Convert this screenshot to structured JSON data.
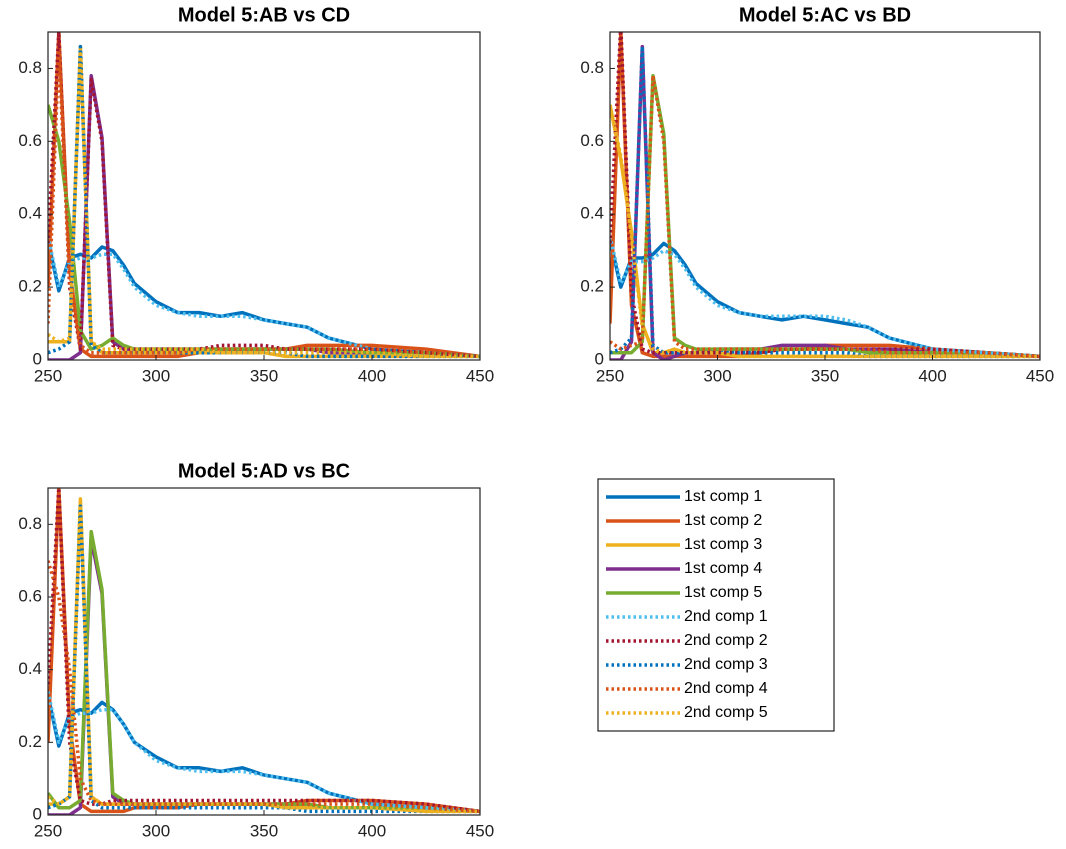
{
  "chart_data": [
    {
      "type": "line",
      "title": "Model 5:AB vs CD",
      "x": [
        250,
        255,
        260,
        265,
        270,
        275,
        280,
        285,
        290,
        300,
        310,
        320,
        330,
        340,
        350,
        360,
        370,
        380,
        400,
        425,
        450
      ],
      "xlim": [
        250,
        450
      ],
      "xticks": [
        250,
        300,
        350,
        400,
        450
      ],
      "ylim": [
        0,
        0.9
      ],
      "yticks": [
        0,
        0.2,
        0.4,
        0.6,
        0.8
      ],
      "series": [
        {
          "name": "1st comp 1",
          "color": "#0072BD",
          "line_style": "solid",
          "values": [
            0.33,
            0.19,
            0.28,
            0.29,
            0.28,
            0.31,
            0.3,
            0.26,
            0.21,
            0.16,
            0.13,
            0.13,
            0.12,
            0.13,
            0.11,
            0.1,
            0.09,
            0.06,
            0.03,
            0.02,
            0.01
          ]
        },
        {
          "name": "1st comp 2",
          "color": "#D95319",
          "line_style": "solid",
          "values": [
            0.2,
            0.9,
            0.25,
            0.03,
            0.01,
            0.01,
            0.01,
            0.01,
            0.01,
            0.01,
            0.01,
            0.02,
            0.03,
            0.03,
            0.03,
            0.03,
            0.04,
            0.04,
            0.04,
            0.03,
            0.01
          ]
        },
        {
          "name": "1st comp 3",
          "color": "#EDB120",
          "line_style": "solid",
          "values": [
            0.05,
            0.05,
            0.05,
            0.86,
            0.05,
            0.02,
            0.02,
            0.02,
            0.02,
            0.02,
            0.02,
            0.02,
            0.02,
            0.02,
            0.02,
            0.01,
            0.01,
            0.01,
            0.01,
            0.01,
            0.01
          ]
        },
        {
          "name": "1st comp 4",
          "color": "#7E2F8E",
          "line_style": "solid",
          "values": [
            0,
            0,
            0,
            0.02,
            0.78,
            0.61,
            0.05,
            0.03,
            0.03,
            0.03,
            0.03,
            0.03,
            0.03,
            0.03,
            0.03,
            0.03,
            0.03,
            0.02,
            0.02,
            0.02,
            0.01
          ]
        },
        {
          "name": "1st comp 5",
          "color": "#77AC30",
          "line_style": "solid",
          "values": [
            0.7,
            0.6,
            0.38,
            0.08,
            0.03,
            0.04,
            0.06,
            0.04,
            0.03,
            0.03,
            0.03,
            0.03,
            0.03,
            0.03,
            0.03,
            0.03,
            0.03,
            0.03,
            0.02,
            0.02,
            0.01
          ]
        },
        {
          "name": "2nd comp 1",
          "color": "#4DBEEE",
          "line_style": "dotted",
          "values": [
            0.34,
            0.2,
            0.27,
            0.28,
            0.28,
            0.29,
            0.29,
            0.25,
            0.2,
            0.15,
            0.13,
            0.12,
            0.12,
            0.12,
            0.11,
            0.1,
            0.09,
            0.06,
            0.03,
            0.02,
            0.01
          ]
        },
        {
          "name": "2nd comp 2",
          "color": "#A2142F",
          "line_style": "dotted",
          "values": [
            0.32,
            0.9,
            0.2,
            0.03,
            0.77,
            0.6,
            0.04,
            0.03,
            0.03,
            0.03,
            0.03,
            0.03,
            0.04,
            0.04,
            0.04,
            0.03,
            0.03,
            0.03,
            0.03,
            0.02,
            0.01
          ]
        },
        {
          "name": "2nd comp 3",
          "color": "#0072BD",
          "line_style": "dotted",
          "values": [
            0.02,
            0.03,
            0.05,
            0.86,
            0.04,
            0.02,
            0.02,
            0.02,
            0.02,
            0.02,
            0.02,
            0.02,
            0.02,
            0.02,
            0.02,
            0.02,
            0.01,
            0.01,
            0.01,
            0.01,
            0.01
          ]
        },
        {
          "name": "2nd comp 4",
          "color": "#D95319",
          "line_style": "dotted",
          "values": [
            0.1,
            0.85,
            0.22,
            0.04,
            0.02,
            0.02,
            0.02,
            0.02,
            0.02,
            0.02,
            0.02,
            0.03,
            0.03,
            0.03,
            0.03,
            0.03,
            0.03,
            0.03,
            0.03,
            0.02,
            0.01
          ]
        },
        {
          "name": "2nd comp 5",
          "color": "#EDB120",
          "line_style": "dotted",
          "values": [
            0.07,
            0.05,
            0.06,
            0.84,
            0.05,
            0.03,
            0.03,
            0.03,
            0.03,
            0.03,
            0.03,
            0.03,
            0.02,
            0.02,
            0.02,
            0.02,
            0.02,
            0.02,
            0.02,
            0.01,
            0.01
          ]
        }
      ]
    },
    {
      "type": "line",
      "title": "Model 5:AC vs BD",
      "x": [
        250,
        255,
        260,
        265,
        270,
        275,
        280,
        285,
        290,
        300,
        310,
        320,
        330,
        340,
        350,
        360,
        370,
        380,
        400,
        425,
        450
      ],
      "xlim": [
        250,
        450
      ],
      "xticks": [
        250,
        300,
        350,
        400,
        450
      ],
      "ylim": [
        0,
        0.9
      ],
      "yticks": [
        0,
        0.2,
        0.4,
        0.6,
        0.8
      ],
      "series": [
        {
          "name": "1st comp 1",
          "color": "#0072BD",
          "line_style": "solid",
          "values": [
            0.33,
            0.2,
            0.28,
            0.28,
            0.29,
            0.32,
            0.3,
            0.26,
            0.21,
            0.16,
            0.13,
            0.12,
            0.11,
            0.12,
            0.11,
            0.1,
            0.09,
            0.06,
            0.03,
            0.02,
            0.01
          ]
        },
        {
          "name": "1st comp 2",
          "color": "#D95319",
          "line_style": "solid",
          "values": [
            0.1,
            0.9,
            0.15,
            0.02,
            0.01,
            0.01,
            0.01,
            0.01,
            0.01,
            0.01,
            0.01,
            0.02,
            0.03,
            0.03,
            0.04,
            0.04,
            0.04,
            0.04,
            0.03,
            0.02,
            0.01
          ]
        },
        {
          "name": "1st comp 3",
          "color": "#EDB120",
          "line_style": "solid",
          "values": [
            0.7,
            0.55,
            0.35,
            0.1,
            0.02,
            0.02,
            0.03,
            0.02,
            0.02,
            0.02,
            0.01,
            0.01,
            0.01,
            0.01,
            0.01,
            0.01,
            0.01,
            0.01,
            0.01,
            0.01,
            0.01
          ]
        },
        {
          "name": "1st comp 4",
          "color": "#7E2F8E",
          "line_style": "solid",
          "values": [
            0,
            0,
            0.05,
            0.86,
            0.02,
            0,
            0.01,
            0.02,
            0.02,
            0.03,
            0.03,
            0.03,
            0.04,
            0.04,
            0.04,
            0.03,
            0.03,
            0.03,
            0.02,
            0.02,
            0.01
          ]
        },
        {
          "name": "1st comp 5",
          "color": "#77AC30",
          "line_style": "solid",
          "values": [
            0.02,
            0.02,
            0.02,
            0.05,
            0.78,
            0.62,
            0.06,
            0.04,
            0.03,
            0.03,
            0.03,
            0.03,
            0.03,
            0.03,
            0.03,
            0.03,
            0.02,
            0.02,
            0.02,
            0.02,
            0.01
          ]
        },
        {
          "name": "2nd comp 1",
          "color": "#4DBEEE",
          "line_style": "dotted",
          "values": [
            0.34,
            0.21,
            0.27,
            0.27,
            0.28,
            0.3,
            0.29,
            0.25,
            0.2,
            0.15,
            0.13,
            0.12,
            0.12,
            0.12,
            0.12,
            0.11,
            0.09,
            0.06,
            0.03,
            0.02,
            0.01
          ]
        },
        {
          "name": "2nd comp 2",
          "color": "#A2142F",
          "line_style": "dotted",
          "values": [
            0.32,
            0.92,
            0.18,
            0.03,
            0.02,
            0.02,
            0.02,
            0.02,
            0.02,
            0.02,
            0.02,
            0.02,
            0.03,
            0.03,
            0.03,
            0.03,
            0.03,
            0.03,
            0.03,
            0.02,
            0.01
          ]
        },
        {
          "name": "2nd comp 3",
          "color": "#0072BD",
          "line_style": "dotted",
          "values": [
            0.02,
            0.03,
            0.06,
            0.86,
            0.04,
            0.02,
            0.02,
            0.02,
            0.02,
            0.02,
            0.02,
            0.02,
            0.02,
            0.02,
            0.02,
            0.02,
            0.01,
            0.01,
            0.01,
            0.01,
            0.01
          ]
        },
        {
          "name": "2nd comp 4",
          "color": "#D95319",
          "line_style": "dotted",
          "values": [
            0.05,
            0.03,
            0.04,
            0.05,
            0.78,
            0.6,
            0.05,
            0.03,
            0.03,
            0.03,
            0.03,
            0.03,
            0.03,
            0.03,
            0.03,
            0.03,
            0.03,
            0.02,
            0.02,
            0.02,
            0.01
          ]
        },
        {
          "name": "2nd comp 5",
          "color": "#EDB120",
          "line_style": "dotted",
          "values": [
            0.7,
            0.56,
            0.34,
            0.09,
            0.03,
            0.02,
            0.03,
            0.02,
            0.02,
            0.02,
            0.01,
            0.01,
            0.01,
            0.01,
            0.01,
            0.01,
            0.01,
            0.01,
            0.01,
            0.01,
            0.01
          ]
        }
      ]
    },
    {
      "type": "line",
      "title": "Model 5:AD vs BC",
      "x": [
        250,
        255,
        260,
        265,
        270,
        275,
        280,
        285,
        290,
        300,
        310,
        320,
        330,
        340,
        350,
        360,
        370,
        380,
        400,
        425,
        450
      ],
      "xlim": [
        250,
        450
      ],
      "xticks": [
        250,
        300,
        350,
        400,
        450
      ],
      "ylim": [
        0,
        0.9
      ],
      "yticks": [
        0,
        0.2,
        0.4,
        0.6,
        0.8
      ],
      "series": [
        {
          "name": "1st comp 1",
          "color": "#0072BD",
          "line_style": "solid",
          "values": [
            0.33,
            0.19,
            0.28,
            0.29,
            0.28,
            0.31,
            0.29,
            0.25,
            0.2,
            0.16,
            0.13,
            0.13,
            0.12,
            0.13,
            0.11,
            0.1,
            0.09,
            0.06,
            0.03,
            0.02,
            0.01
          ]
        },
        {
          "name": "1st comp 2",
          "color": "#D95319",
          "line_style": "solid",
          "values": [
            0.2,
            0.9,
            0.25,
            0.03,
            0.01,
            0.01,
            0.01,
            0.01,
            0.02,
            0.02,
            0.02,
            0.03,
            0.03,
            0.03,
            0.03,
            0.03,
            0.04,
            0.04,
            0.04,
            0.03,
            0.01
          ]
        },
        {
          "name": "1st comp 3",
          "color": "#EDB120",
          "line_style": "solid",
          "values": [
            0.03,
            0.03,
            0.05,
            0.87,
            0.05,
            0.03,
            0.03,
            0.03,
            0.03,
            0.03,
            0.03,
            0.03,
            0.03,
            0.03,
            0.03,
            0.02,
            0.02,
            0.02,
            0.02,
            0.01,
            0.01
          ]
        },
        {
          "name": "1st comp 4",
          "color": "#7E2F8E",
          "line_style": "solid",
          "values": [
            0,
            0,
            0,
            0.02,
            0.76,
            0.61,
            0.05,
            0.03,
            0.03,
            0.03,
            0.03,
            0.03,
            0.03,
            0.03,
            0.03,
            0.03,
            0.03,
            0.02,
            0.02,
            0.02,
            0.01
          ]
        },
        {
          "name": "1st comp 5",
          "color": "#77AC30",
          "line_style": "solid",
          "values": [
            0.06,
            0.02,
            0.02,
            0.04,
            0.78,
            0.62,
            0.06,
            0.04,
            0.03,
            0.03,
            0.03,
            0.03,
            0.03,
            0.03,
            0.03,
            0.03,
            0.03,
            0.02,
            0.02,
            0.02,
            0.01
          ]
        },
        {
          "name": "2nd comp 1",
          "color": "#4DBEEE",
          "line_style": "dotted",
          "values": [
            0.34,
            0.2,
            0.27,
            0.28,
            0.28,
            0.29,
            0.29,
            0.25,
            0.2,
            0.15,
            0.13,
            0.12,
            0.12,
            0.12,
            0.11,
            0.1,
            0.09,
            0.06,
            0.03,
            0.02,
            0.01
          ]
        },
        {
          "name": "2nd comp 2",
          "color": "#A2142F",
          "line_style": "dotted",
          "values": [
            0.36,
            0.9,
            0.2,
            0.04,
            0.03,
            0.03,
            0.04,
            0.04,
            0.04,
            0.04,
            0.04,
            0.04,
            0.04,
            0.04,
            0.04,
            0.04,
            0.04,
            0.04,
            0.04,
            0.03,
            0.01
          ]
        },
        {
          "name": "2nd comp 3",
          "color": "#0072BD",
          "line_style": "dotted",
          "values": [
            0.02,
            0.03,
            0.05,
            0.85,
            0.04,
            0.02,
            0.02,
            0.02,
            0.02,
            0.02,
            0.02,
            0.02,
            0.02,
            0.02,
            0.02,
            0.02,
            0.01,
            0.01,
            0.01,
            0.01,
            0.01
          ]
        },
        {
          "name": "2nd comp 4",
          "color": "#D95319",
          "line_style": "dotted",
          "values": [
            0.7,
            0.6,
            0.4,
            0.1,
            0.04,
            0.03,
            0.03,
            0.03,
            0.03,
            0.03,
            0.03,
            0.03,
            0.03,
            0.03,
            0.03,
            0.03,
            0.03,
            0.03,
            0.03,
            0.02,
            0.01
          ]
        },
        {
          "name": "2nd comp 5",
          "color": "#EDB120",
          "line_style": "dotted",
          "values": [
            0.05,
            0.03,
            0.05,
            0.86,
            0.05,
            0.03,
            0.03,
            0.03,
            0.03,
            0.03,
            0.03,
            0.03,
            0.03,
            0.03,
            0.03,
            0.02,
            0.02,
            0.02,
            0.02,
            0.01,
            0.01
          ]
        }
      ]
    }
  ]
}
